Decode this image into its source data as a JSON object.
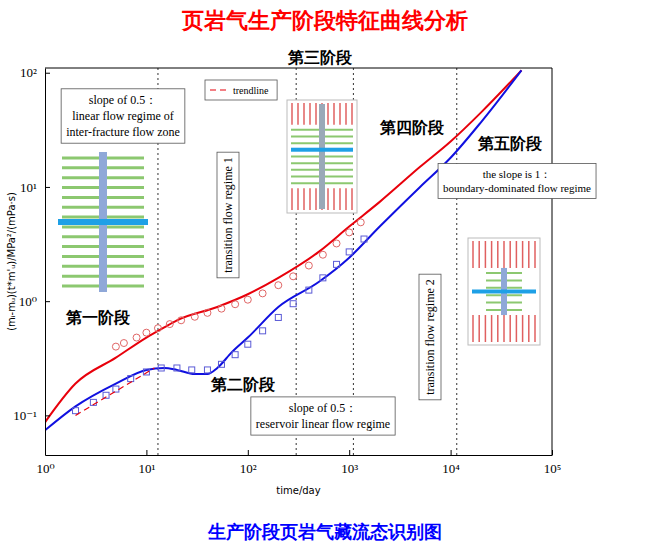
{
  "chart_data": {
    "type": "line",
    "title": "页岩气生产阶段特征曲线分析",
    "caption": "生产阶段页岩气藏流态识别图",
    "x_label": "time/day",
    "y_label": "(mᵢ-mᵤ)(t*m'ᵤ)/MPa²/(mPa·s)",
    "log": true,
    "grid": false,
    "legend": "top-left",
    "xlim": [
      1,
      100000
    ],
    "ylim": [
      0.045,
      110
    ],
    "xticks": [
      {
        "value": 1,
        "label": "10⁰"
      },
      {
        "value": 10,
        "label": "10¹"
      },
      {
        "value": 100,
        "label": "10²"
      },
      {
        "value": 1000,
        "label": "10³"
      },
      {
        "value": 10000,
        "label": "10⁴"
      },
      {
        "value": 100000,
        "label": "10⁵"
      }
    ],
    "yticks": [
      {
        "value": 0.1,
        "label": "10⁻¹"
      },
      {
        "value": 1,
        "label": "10⁰"
      },
      {
        "value": 10,
        "label": "10¹"
      },
      {
        "value": 100,
        "label": "10²"
      }
    ],
    "series": [
      {
        "type": "line",
        "color": "#e8000b",
        "line_style": "solid",
        "x": [
          1,
          2,
          5,
          10,
          15,
          20,
          50,
          100,
          200,
          500,
          1000,
          2000,
          5000,
          10000,
          20000,
          50000
        ],
        "values": [
          0.087,
          0.19,
          0.32,
          0.48,
          0.59,
          0.68,
          0.89,
          1.15,
          1.6,
          2.7,
          4.5,
          7.4,
          15,
          25,
          45,
          105
        ]
      },
      {
        "type": "line",
        "color": "#1010e0",
        "line_style": "solid",
        "x": [
          1,
          2,
          5,
          10,
          15,
          20,
          30,
          40,
          50,
          70,
          100,
          200,
          500,
          1000,
          2000,
          5000,
          10000,
          20000,
          50000
        ],
        "values": [
          0.074,
          0.12,
          0.19,
          0.25,
          0.26,
          0.25,
          0.23,
          0.23,
          0.26,
          0.36,
          0.48,
          0.89,
          1.47,
          2.4,
          4.5,
          10,
          18,
          37,
          105
        ]
      },
      {
        "type": "scatter",
        "color": "#e06666",
        "marker": "circle",
        "x": [
          5,
          6,
          8,
          10,
          13,
          17,
          22,
          30,
          40,
          55,
          75,
          100,
          140,
          200,
          280,
          400,
          550,
          750,
          1000,
          1300
        ],
        "values": [
          0.4,
          0.43,
          0.48,
          0.53,
          0.58,
          0.63,
          0.68,
          0.73,
          0.79,
          0.86,
          0.94,
          1.03,
          1.17,
          1.38,
          1.65,
          2.05,
          2.55,
          3.2,
          4.0,
          4.9
        ]
      },
      {
        "type": "scatter",
        "color": "#5b5bd6",
        "marker": "square",
        "x": [
          2,
          3,
          4,
          5,
          7,
          10,
          14,
          20,
          28,
          40,
          55,
          75,
          100,
          140,
          200,
          280,
          400,
          550,
          750,
          1000,
          1400
        ],
        "values": [
          0.11,
          0.13,
          0.15,
          0.17,
          0.21,
          0.24,
          0.26,
          0.26,
          0.25,
          0.25,
          0.28,
          0.34,
          0.42,
          0.55,
          0.72,
          0.95,
          1.25,
          1.6,
          2.1,
          2.7,
          3.5
        ]
      },
      {
        "type": "line",
        "name": "trendline",
        "color": "#e8000b",
        "line_style": "dashed",
        "x": [
          2,
          12
        ],
        "values": [
          0.1,
          0.26
        ]
      }
    ],
    "vlines": [
      13,
      300,
      1100,
      11500
    ],
    "annotations": [
      {
        "text": [
          "slope of 0.5：",
          "linear flow regime of",
          "inter-fracture flow zone"
        ]
      },
      {
        "text": [
          "transition flow regime 1"
        ]
      },
      {
        "text": [
          "slope of 0.5：",
          "reservoir linear flow regime"
        ]
      },
      {
        "text": [
          "the slope is 1：",
          "boundary-dominated flow regime"
        ]
      },
      {
        "text": [
          "transition flow regime 2"
        ]
      },
      {
        "text": [
          "第一阶段"
        ]
      },
      {
        "text": [
          "第二阶段"
        ]
      },
      {
        "text": [
          "第三阶段"
        ]
      },
      {
        "text": [
          "第四阶段"
        ]
      },
      {
        "text": [
          "第五阶段"
        ]
      }
    ]
  }
}
